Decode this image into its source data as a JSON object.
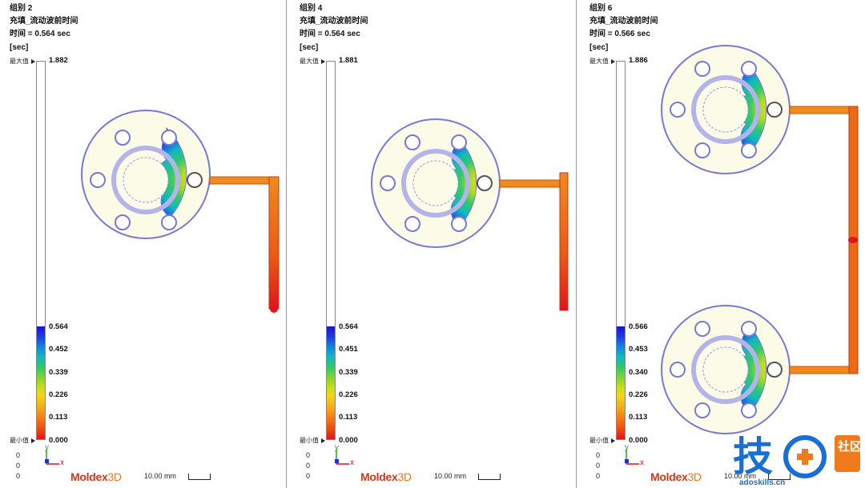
{
  "colors": {
    "outline": "#7878d8",
    "sprue": "#e88a1e",
    "blue": "#1f10d4",
    "red": "#e1141c"
  },
  "panels": [
    {
      "group": "组别 2",
      "quantity": "充填_流动波前时间",
      "time": "时间 = 0.564 sec",
      "unit": "[sec]",
      "max_label": "最大值",
      "max_value": "1.882",
      "min_label": "最小值",
      "min_value": "0.000",
      "ticks": [
        "0.564",
        "0.452",
        "0.339",
        "0.226",
        "0.113",
        "0.000"
      ],
      "coords": [
        "0",
        "0",
        "0"
      ],
      "axis_y": "y",
      "axis_x": "x",
      "logo_a": "Moldex",
      "logo_b": "3D",
      "scale": "10.00 mm"
    },
    {
      "group": "组别 4",
      "quantity": "充填_流动波前时间",
      "time": "时间 = 0.564 sec",
      "unit": "[sec]",
      "max_label": "最大值",
      "max_value": "1.881",
      "min_label": "最小值",
      "min_value": "0.000",
      "ticks": [
        "0.564",
        "0.451",
        "0.339",
        "0.226",
        "0.113",
        "0.000"
      ],
      "coords": [
        "0",
        "0",
        "0"
      ],
      "axis_y": "y",
      "axis_x": "x",
      "logo_a": "Moldex",
      "logo_b": "3D",
      "scale": "10.00 mm"
    },
    {
      "group": "组别 6",
      "quantity": "充填_流动波前时间",
      "time": "时间 = 0.566 sec",
      "unit": "[sec]",
      "max_label": "最大值",
      "max_value": "1.886",
      "min_label": "最小值",
      "min_value": "0.000",
      "ticks": [
        "0.566",
        "0.453",
        "0.340",
        "0.226",
        "0.113",
        "0.000"
      ],
      "coords": [
        "0",
        "0",
        "0"
      ],
      "axis_y": "y",
      "axis_x": "x",
      "logo_a": "Moldex",
      "logo_b": "3D",
      "scale": "10.00 mm"
    }
  ],
  "watermark": {
    "text_a": "技",
    "text_b": "社区",
    "url": "adoskills.cn"
  }
}
